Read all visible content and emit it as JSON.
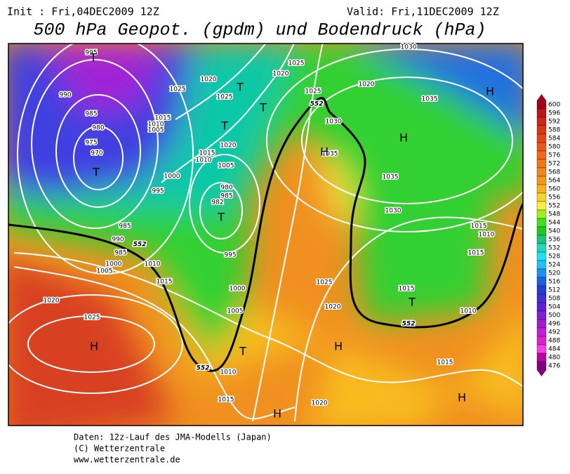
{
  "header": {
    "init": "Init : Fri,04DEC2009 12Z",
    "valid": "Valid: Fri,11DEC2009 12Z",
    "title": "500 hPa Geopot. (gpdm) und Bodendruck (hPa)"
  },
  "footer": [
    "Daten: 12z-Lauf des JMA-Modells (Japan)",
    "(C) Wetterzentrale",
    "www.wetterzentrale.de"
  ],
  "colorbar": {
    "ticks": [
      600,
      596,
      592,
      588,
      584,
      580,
      576,
      572,
      568,
      564,
      560,
      556,
      552,
      548,
      544,
      540,
      536,
      532,
      528,
      524,
      520,
      516,
      512,
      508,
      504,
      500,
      496,
      492,
      488,
      484,
      480,
      476
    ]
  },
  "map": {
    "isobar_labels": [
      "995",
      "990",
      "985",
      "980",
      "975",
      "970",
      "1025",
      "1015",
      "1010",
      "1005",
      "1020",
      "1025",
      "1020",
      "1015",
      "1010",
      "1005",
      "1000",
      "995",
      "980",
      "985",
      "982",
      "985",
      "990",
      "985",
      "1000",
      "1005",
      "1010",
      "1015",
      "995",
      "1000",
      "1005",
      "1010",
      "1015",
      "1020",
      "1025",
      "1020",
      "1025",
      "1020",
      "1025",
      "1025",
      "1030",
      "1035",
      "1020",
      "1030",
      "1035",
      "1035",
      "1030",
      "1015",
      "1010",
      "1015",
      "1010",
      "1015",
      "1020",
      "1015"
    ],
    "contour_552_labels": [
      "552",
      "552",
      "552",
      "552"
    ],
    "centers": [
      "T",
      "T",
      "T",
      "T",
      "T",
      "T",
      "T",
      "T",
      "H",
      "H",
      "H",
      "H",
      "H",
      "H",
      "H"
    ]
  }
}
